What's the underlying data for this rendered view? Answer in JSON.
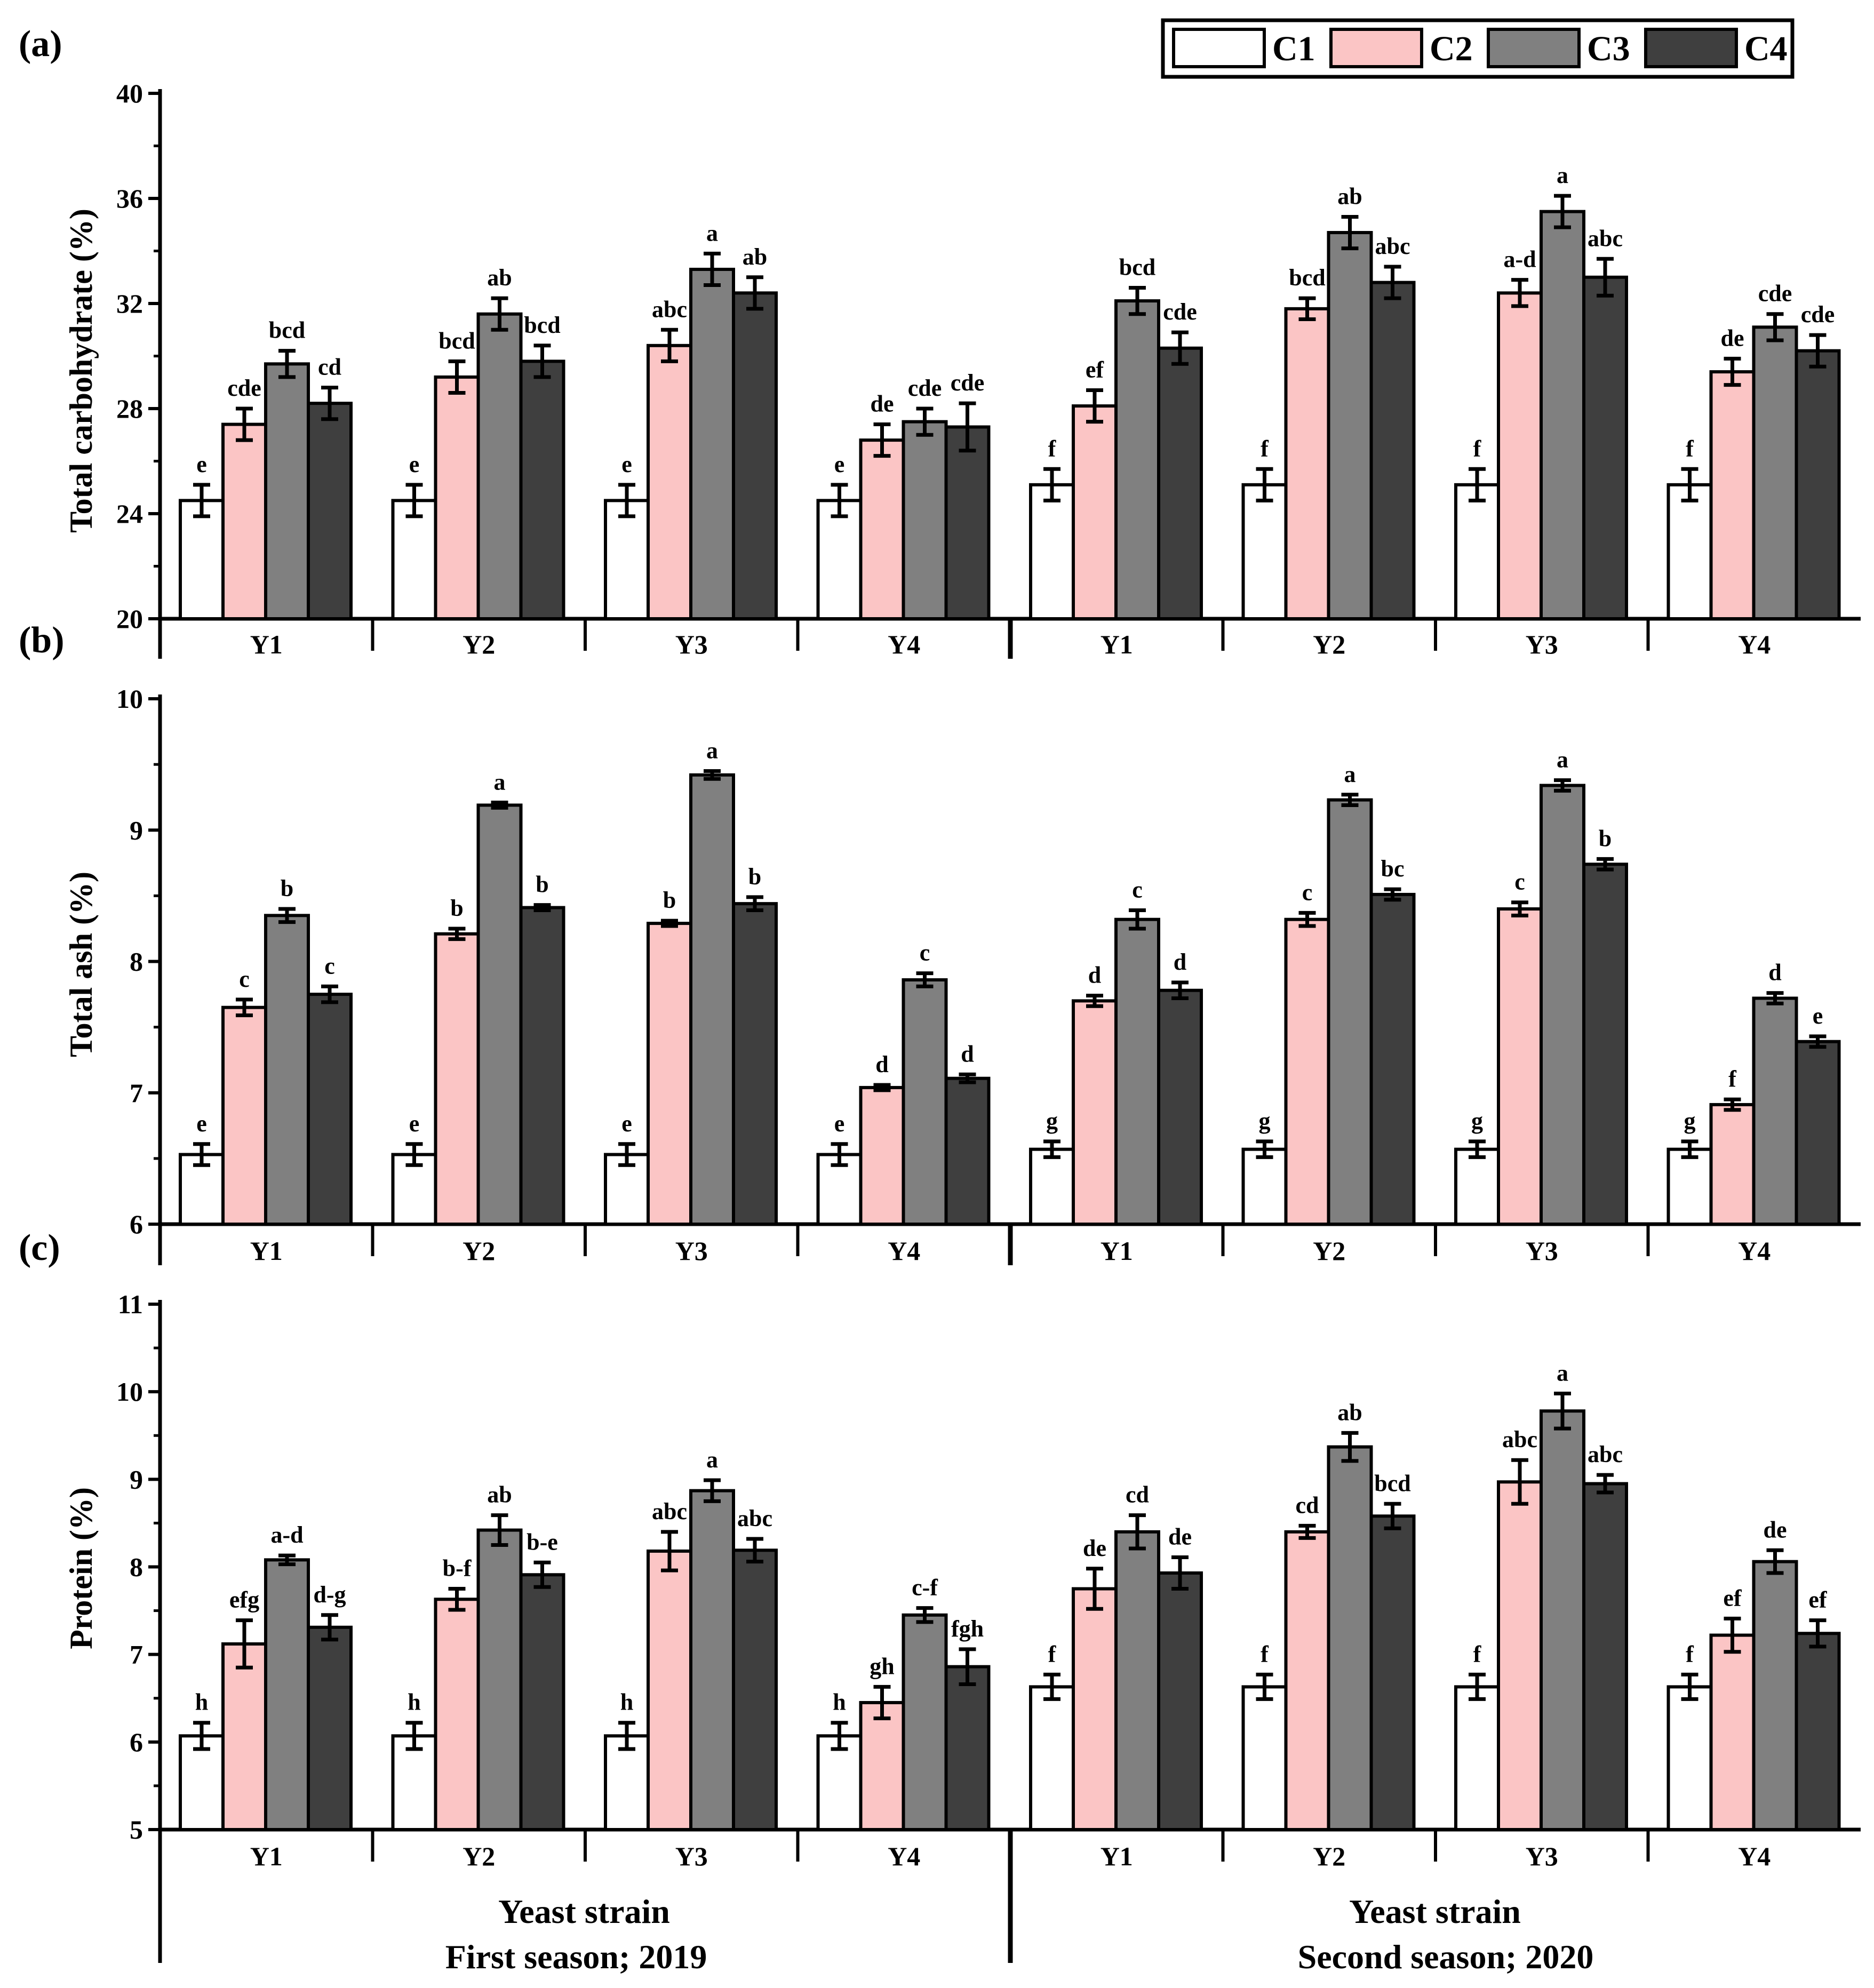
{
  "legend": [
    {
      "name": "C1",
      "color": "#ffffff"
    },
    {
      "name": "C2",
      "color": "#fbc5c5"
    },
    {
      "name": "C3",
      "color": "#808080"
    },
    {
      "name": "C4",
      "color": "#3f3f3f"
    }
  ],
  "footer": {
    "left": {
      "line1": "Yeast strain",
      "line2": "First season; 2019"
    },
    "right": {
      "line1": "Yeast strain",
      "line2": "Second season; 2020"
    }
  },
  "chart_data": [
    {
      "type": "bar",
      "panel_label": "(a)",
      "ylabel": "Total carbohydrate (%)",
      "ylim": [
        20,
        40
      ],
      "yticks": [
        20,
        24,
        28,
        32,
        36,
        40
      ],
      "categories": [
        "Y1",
        "Y2",
        "Y3",
        "Y4",
        "Y1",
        "Y2",
        "Y3",
        "Y4"
      ],
      "series": [
        {
          "name": "C1",
          "values": [
            24.5,
            24.5,
            24.5,
            24.5,
            25.1,
            25.1,
            25.1,
            25.1
          ],
          "errors": [
            0.6,
            0.6,
            0.6,
            0.6,
            0.6,
            0.6,
            0.6,
            0.6
          ],
          "letters": [
            "e",
            "e",
            "e",
            "e",
            "f",
            "f",
            "f",
            "f"
          ]
        },
        {
          "name": "C2",
          "values": [
            27.4,
            29.2,
            30.4,
            26.8,
            28.1,
            31.8,
            32.4,
            29.4
          ],
          "errors": [
            0.6,
            0.6,
            0.6,
            0.6,
            0.6,
            0.4,
            0.5,
            0.5
          ],
          "letters": [
            "cde",
            "bcd",
            "abc",
            "de",
            "ef",
            "bcd",
            "a-d",
            "de"
          ]
        },
        {
          "name": "C3",
          "values": [
            29.7,
            31.6,
            33.3,
            27.5,
            32.1,
            34.7,
            35.5,
            31.1
          ],
          "errors": [
            0.5,
            0.6,
            0.6,
            0.5,
            0.5,
            0.6,
            0.6,
            0.5
          ],
          "letters": [
            "bcd",
            "ab",
            "a",
            "cde",
            "bcd",
            "ab",
            "a",
            "cde"
          ]
        },
        {
          "name": "C4",
          "values": [
            28.2,
            29.8,
            32.4,
            27.3,
            30.3,
            32.8,
            33.0,
            30.2
          ],
          "errors": [
            0.6,
            0.6,
            0.6,
            0.9,
            0.6,
            0.6,
            0.7,
            0.6
          ],
          "letters": [
            "cd",
            "bcd",
            "ab",
            "cde",
            "cde",
            "abc",
            "abc",
            "cde"
          ]
        }
      ]
    },
    {
      "type": "bar",
      "panel_label": "(b)",
      "ylabel": "Total ash (%)",
      "ylim": [
        6,
        10
      ],
      "yticks": [
        6,
        7,
        8,
        9,
        10
      ],
      "categories": [
        "Y1",
        "Y2",
        "Y3",
        "Y4",
        "Y1",
        "Y2",
        "Y3",
        "Y4"
      ],
      "series": [
        {
          "name": "C1",
          "values": [
            6.53,
            6.53,
            6.53,
            6.53,
            6.57,
            6.57,
            6.57,
            6.57
          ],
          "errors": [
            0.08,
            0.08,
            0.08,
            0.08,
            0.06,
            0.06,
            0.06,
            0.06
          ],
          "letters": [
            "e",
            "e",
            "e",
            "e",
            "g",
            "g",
            "g",
            "g"
          ]
        },
        {
          "name": "C2",
          "values": [
            7.65,
            8.21,
            8.29,
            7.04,
            7.7,
            8.32,
            8.4,
            6.91
          ],
          "errors": [
            0.06,
            0.04,
            0.02,
            0.02,
            0.04,
            0.05,
            0.05,
            0.04
          ],
          "letters": [
            "c",
            "b",
            "b",
            "d",
            "d",
            "c",
            "c",
            "f"
          ]
        },
        {
          "name": "C3",
          "values": [
            8.35,
            9.19,
            9.42,
            7.86,
            8.32,
            9.23,
            9.34,
            7.72
          ],
          "errors": [
            0.05,
            0.02,
            0.03,
            0.05,
            0.07,
            0.04,
            0.04,
            0.04
          ],
          "letters": [
            "b",
            "a",
            "a",
            "c",
            "c",
            "a",
            "a",
            "d"
          ]
        },
        {
          "name": "C4",
          "values": [
            7.75,
            8.41,
            8.44,
            7.11,
            7.78,
            8.51,
            8.74,
            7.39
          ],
          "errors": [
            0.06,
            0.02,
            0.05,
            0.03,
            0.06,
            0.04,
            0.04,
            0.04
          ],
          "letters": [
            "c",
            "b",
            "b",
            "d",
            "d",
            "bc",
            "b",
            "e"
          ]
        }
      ]
    },
    {
      "type": "bar",
      "panel_label": "(c)",
      "ylabel": "Protein (%)",
      "ylim": [
        5,
        11
      ],
      "yticks": [
        5,
        6,
        7,
        8,
        9,
        10,
        11
      ],
      "categories": [
        "Y1",
        "Y2",
        "Y3",
        "Y4",
        "Y1",
        "Y2",
        "Y3",
        "Y4"
      ],
      "series": [
        {
          "name": "C1",
          "values": [
            6.07,
            6.07,
            6.07,
            6.07,
            6.63,
            6.63,
            6.63,
            6.63
          ],
          "errors": [
            0.15,
            0.15,
            0.15,
            0.15,
            0.14,
            0.14,
            0.14,
            0.14
          ],
          "letters": [
            "h",
            "h",
            "h",
            "h",
            "f",
            "f",
            "f",
            "f"
          ]
        },
        {
          "name": "C2",
          "values": [
            7.12,
            7.63,
            8.18,
            6.45,
            7.75,
            8.4,
            8.97,
            7.22
          ],
          "errors": [
            0.27,
            0.12,
            0.22,
            0.18,
            0.23,
            0.07,
            0.25,
            0.19
          ],
          "letters": [
            "efg",
            "b-f",
            "abc",
            "gh",
            "de",
            "cd",
            "abc",
            "ef"
          ]
        },
        {
          "name": "C3",
          "values": [
            8.08,
            8.42,
            8.87,
            7.45,
            8.4,
            9.37,
            9.78,
            8.06
          ],
          "errors": [
            0.05,
            0.17,
            0.12,
            0.08,
            0.19,
            0.16,
            0.2,
            0.13
          ],
          "letters": [
            "a-d",
            "ab",
            "a",
            "c-f",
            "cd",
            "ab",
            "a",
            "de"
          ]
        },
        {
          "name": "C4",
          "values": [
            7.31,
            7.91,
            8.19,
            6.86,
            7.93,
            8.58,
            8.95,
            7.24
          ],
          "errors": [
            0.14,
            0.14,
            0.13,
            0.2,
            0.18,
            0.14,
            0.1,
            0.15
          ],
          "letters": [
            "d-g",
            "b-e",
            "abc",
            "fgh",
            "de",
            "bcd",
            "abc",
            "ef"
          ]
        }
      ]
    }
  ]
}
